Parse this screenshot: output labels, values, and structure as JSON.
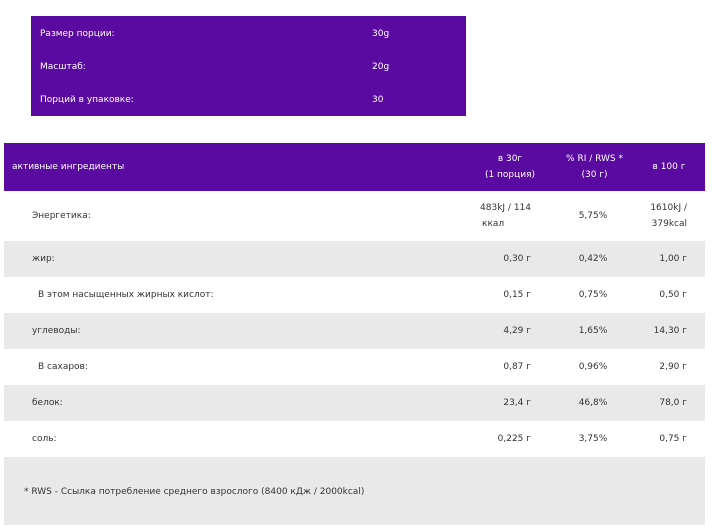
{
  "serving": {
    "rows": [
      {
        "label": "Размер порции:",
        "value": "30g"
      },
      {
        "label": "Масштаб:",
        "value": "20g"
      },
      {
        "label": "Порций в упаковке:",
        "value": "30"
      }
    ]
  },
  "nutrition": {
    "headers": {
      "ingredient": "активные ингредиенты",
      "per_serving_line1": "в 30г",
      "per_serving_line2": "(1 порция)",
      "ri_line1": "% RI / RWS *",
      "ri_line2": "(30 г)",
      "per_100": "в 100 г"
    },
    "rows": [
      {
        "name": "Энергетика:",
        "per_serving": "483kJ / 114",
        "per_serving_2": "ккал",
        "ri": "5,75%",
        "per_100": "1610kJ /",
        "per_100_2": "379kcal"
      },
      {
        "name": "жир:",
        "per_serving": "0,30 г",
        "per_serving_2": "",
        "ri": "0,42%",
        "per_100": "1,00 г",
        "per_100_2": ""
      },
      {
        "name": "В этом насыщенных жирных кислот:",
        "per_serving": "0,15 г",
        "per_serving_2": "",
        "ri": "0,75%",
        "per_100": "0,50 г",
        "per_100_2": ""
      },
      {
        "name": "углеводы:",
        "per_serving": "4,29 г",
        "per_serving_2": "",
        "ri": "1,65%",
        "per_100": "14,30 г",
        "per_100_2": ""
      },
      {
        "name": "В сахаров:",
        "per_serving": "0,87 г",
        "per_serving_2": "",
        "ri": "0,96%",
        "per_100": "2,90 г",
        "per_100_2": ""
      },
      {
        "name": "белок:",
        "per_serving": "23,4 г",
        "per_serving_2": "",
        "ri": "46,8%",
        "per_100": "78,0 г",
        "per_100_2": ""
      },
      {
        "name": "соль:",
        "per_serving": "0,225 г",
        "per_serving_2": "",
        "ri": "3,75%",
        "per_100": "0,75 г",
        "per_100_2": ""
      }
    ],
    "footnote": "* RWS - Ссылка потребление среднего взрослого (8400 кДж / 2000kcal)"
  },
  "colors": {
    "header_bg": "#5a0aa0",
    "row_shade": "#e9e9e9"
  }
}
